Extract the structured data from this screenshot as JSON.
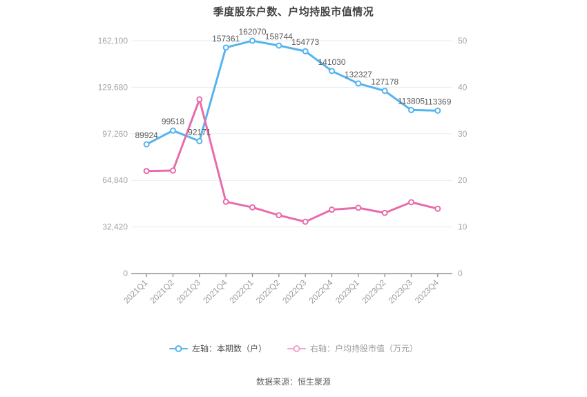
{
  "page": {
    "title": "季度股东户数、户均持股市值情况",
    "source": "数据来源：恒生聚源"
  },
  "legend": {
    "items": [
      {
        "label": "左轴：本期数（户）",
        "marker_color": "#54b4ee",
        "text_color": "#4d4d4d"
      },
      {
        "label": "右轴：户均持股市值（万元）",
        "marker_color": "#f2a3cd",
        "text_color": "#9c9c9c"
      }
    ]
  },
  "chart_data": {
    "type": "line",
    "title": "季度股东户数、户均持股市值情况",
    "categories": [
      "2021Q1",
      "2021Q2",
      "2021Q3",
      "2021Q4",
      "2022Q1",
      "2022Q2",
      "2022Q3",
      "2022Q4",
      "2023Q1",
      "2023Q2",
      "2023Q3",
      "2023Q4"
    ],
    "series": [
      {
        "name": "左轴：本期数（户）",
        "axis": "left",
        "color": "#54b4ee",
        "show_labels": true,
        "values": [
          89924,
          99518,
          92171,
          157361,
          162070,
          158744,
          154773,
          141030,
          132327,
          127178,
          113805,
          113369
        ]
      },
      {
        "name": "右轴：户均持股市值（万元）",
        "axis": "right",
        "color": "#e86bac",
        "show_labels": false,
        "values": [
          22,
          22.1,
          37.4,
          15.4,
          14.2,
          12.5,
          11.1,
          13.7,
          14.1,
          13,
          15.3,
          13.9
        ]
      }
    ],
    "left_axis": {
      "min": 0,
      "max": 162100,
      "tick_labels": [
        "162,100",
        "129,680",
        "97,260",
        "64,840",
        "32,420",
        "0"
      ]
    },
    "right_axis": {
      "min": 0,
      "max": 50,
      "tick_labels": [
        "50",
        "40",
        "30",
        "20",
        "10",
        "0"
      ]
    },
    "grid": true,
    "legend_position": "bottom",
    "colors": {
      "grid_line": "#e6ebf2",
      "axis_line": "#888888",
      "axis_label": "#a3a3a3",
      "x_label": "#999999",
      "data_label": "#5a5a5a"
    }
  }
}
